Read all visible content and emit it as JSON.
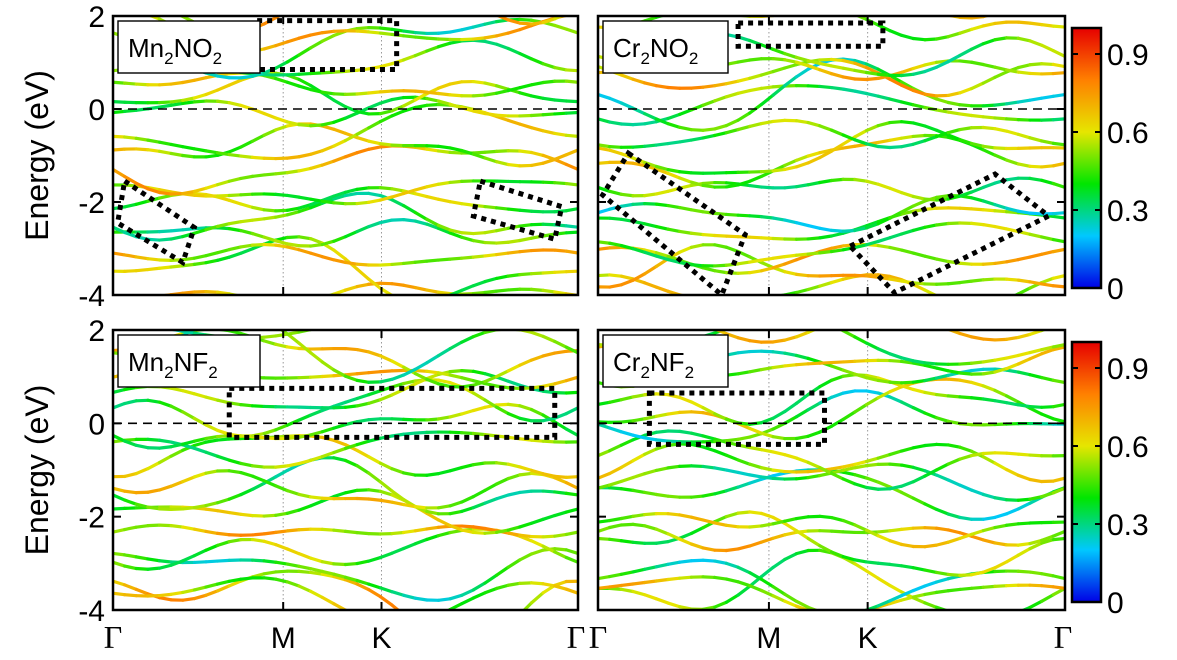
{
  "chart_data": [
    {
      "type": "line",
      "title": "",
      "panel_label": {
        "base1": "Mn",
        "sub1": "2",
        "base2": "NO",
        "sub2": "2"
      },
      "ylabel": "Energy (eV)",
      "ylim": [
        -4,
        2
      ],
      "yticks": [
        "2",
        "0",
        "-2",
        "-4"
      ],
      "k_points": [
        "Γ",
        "M",
        "K",
        "Γ"
      ],
      "show_kpoint_labels": false,
      "fermi_level": 0,
      "colorbar": false,
      "highlight_boxes": [
        {
          "kind": "rect",
          "k_start": 0.62,
          "k_end": 1.22,
          "e_start": 0.85,
          "e_end": 1.9
        },
        {
          "kind": "tilted",
          "points": [
            [
              0.05,
              -1.55
            ],
            [
              0.35,
              -2.55
            ],
            [
              0.3,
              -3.3
            ],
            [
              0.02,
              -2.45
            ]
          ]
        },
        {
          "kind": "tilted",
          "points": [
            [
              1.58,
              -1.55
            ],
            [
              1.93,
              -2.1
            ],
            [
              1.9,
              -2.8
            ],
            [
              1.55,
              -2.3
            ]
          ]
        }
      ]
    },
    {
      "type": "line",
      "title": "",
      "panel_label": {
        "base1": "Cr",
        "sub1": "2",
        "base2": "NO",
        "sub2": "2"
      },
      "ylim": [
        -4,
        2
      ],
      "yticks": [
        "",
        "",
        "",
        ""
      ],
      "k_points": [
        "Γ",
        "M",
        "K",
        "Γ"
      ],
      "show_kpoint_labels": false,
      "fermi_level": 0,
      "colorbar": true,
      "highlight_boxes": [
        {
          "kind": "rect",
          "k_start": 0.6,
          "k_end": 1.22,
          "e_start": 1.35,
          "e_end": 1.85
        },
        {
          "kind": "tilted",
          "points": [
            [
              0.13,
              -0.95
            ],
            [
              0.63,
              -2.7
            ],
            [
              0.53,
              -4.0
            ],
            [
              0.02,
              -1.85
            ]
          ]
        },
        {
          "kind": "tilted",
          "points": [
            [
              1.08,
              -2.95
            ],
            [
              1.7,
              -1.4
            ],
            [
              1.93,
              -2.3
            ],
            [
              1.27,
              -3.95
            ]
          ]
        }
      ]
    },
    {
      "type": "line",
      "title": "",
      "panel_label": {
        "base1": "Mn",
        "sub1": "2",
        "base2": "NF",
        "sub2": "2"
      },
      "ylabel": "Energy (eV)",
      "ylim": [
        -4,
        2
      ],
      "yticks": [
        "2",
        "0",
        "-2",
        "-4"
      ],
      "k_points": [
        "Γ",
        "M",
        "K",
        "Γ"
      ],
      "show_kpoint_labels": true,
      "fermi_level": 0,
      "colorbar": false,
      "highlight_boxes": [
        {
          "kind": "rect",
          "k_start": 0.5,
          "k_end": 1.9,
          "e_start": -0.3,
          "e_end": 0.75
        }
      ]
    },
    {
      "type": "line",
      "title": "",
      "panel_label": {
        "base1": "Cr",
        "sub1": "2",
        "base2": "NF",
        "sub2": "2"
      },
      "ylim": [
        -4,
        2
      ],
      "yticks": [
        "",
        "",
        "",
        ""
      ],
      "k_points": [
        "Γ",
        "M",
        "K",
        "Γ"
      ],
      "show_kpoint_labels": true,
      "fermi_level": 0,
      "colorbar": true,
      "highlight_boxes": [
        {
          "kind": "rect",
          "k_start": 0.22,
          "k_end": 0.97,
          "e_start": -0.45,
          "e_end": 0.65
        }
      ]
    }
  ],
  "colorbar": {
    "min": 0,
    "max": 1,
    "ticks": [
      {
        "v": 0.9,
        "label": "0.9"
      },
      {
        "v": 0.6,
        "label": "0.6"
      },
      {
        "v": 0.3,
        "label": "0.3"
      },
      {
        "v": 0,
        "label": "0"
      }
    ],
    "colors": [
      "#0000e6",
      "#00c8ff",
      "#00e600",
      "#e6e600",
      "#ff8000",
      "#e60000"
    ]
  }
}
